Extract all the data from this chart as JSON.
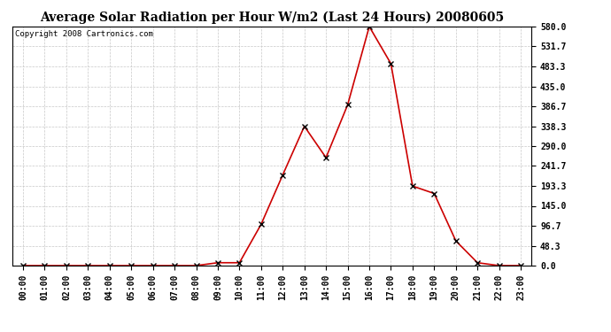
{
  "title": "Average Solar Radiation per Hour W/m2 (Last 24 Hours) 20080605",
  "copyright": "Copyright 2008 Cartronics.com",
  "hours": [
    0,
    1,
    2,
    3,
    4,
    5,
    6,
    7,
    8,
    9,
    10,
    11,
    12,
    13,
    14,
    15,
    16,
    17,
    18,
    19,
    20,
    21,
    22,
    23
  ],
  "values": [
    0,
    0,
    0,
    0,
    0,
    0,
    0,
    0,
    0,
    7,
    7,
    100,
    220,
    338,
    262,
    390,
    580,
    490,
    193,
    175,
    60,
    7,
    0,
    0
  ],
  "line_color": "#cc0000",
  "marker_color": "#000000",
  "background_color": "#ffffff",
  "grid_color": "#c8c8c8",
  "ylim_min": 0,
  "ylim_max": 580,
  "yticks": [
    0.0,
    48.3,
    96.7,
    145.0,
    193.3,
    241.7,
    290.0,
    338.3,
    386.7,
    435.0,
    483.3,
    531.7,
    580.0
  ],
  "title_fontsize": 10,
  "copyright_fontsize": 6.5,
  "tick_fontsize": 7
}
